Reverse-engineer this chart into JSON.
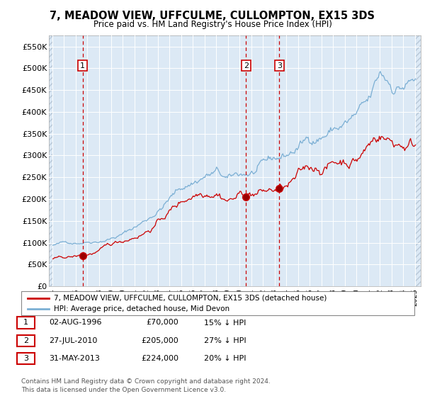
{
  "title": "7, MEADOW VIEW, UFFCULME, CULLOMPTON, EX15 3DS",
  "subtitle": "Price paid vs. HM Land Registry's House Price Index (HPI)",
  "ylim": [
    0,
    575000
  ],
  "yticks": [
    0,
    50000,
    100000,
    150000,
    200000,
    250000,
    300000,
    350000,
    400000,
    450000,
    500000,
    550000
  ],
  "ytick_labels": [
    "£0",
    "£50K",
    "£100K",
    "£150K",
    "£200K",
    "£250K",
    "£300K",
    "£350K",
    "£400K",
    "£450K",
    "£500K",
    "£550K"
  ],
  "xmin": 1993.7,
  "xmax": 2025.5,
  "plot_bg_color": "#dce9f5",
  "hatch_color": "#b8c8d8",
  "legend_label_red": "7, MEADOW VIEW, UFFCULME, CULLOMPTON, EX15 3DS (detached house)",
  "legend_label_blue": "HPI: Average price, detached house, Mid Devon",
  "sale_points": [
    {
      "date_num": 1996.58,
      "price": 70000,
      "label": "1"
    },
    {
      "date_num": 2010.56,
      "price": 205000,
      "label": "2"
    },
    {
      "date_num": 2013.41,
      "price": 224000,
      "label": "3"
    }
  ],
  "sale_dates_text": [
    "02-AUG-1996",
    "27-JUL-2010",
    "31-MAY-2013"
  ],
  "sale_prices_text": [
    "£70,000",
    "£205,000",
    "£224,000"
  ],
  "sale_hpi_text": [
    "15% ↓ HPI",
    "27% ↓ HPI",
    "20% ↓ HPI"
  ],
  "footer": "Contains HM Land Registry data © Crown copyright and database right 2024.\nThis data is licensed under the Open Government Licence v3.0.",
  "red_color": "#cc0000",
  "blue_color": "#7bafd4"
}
